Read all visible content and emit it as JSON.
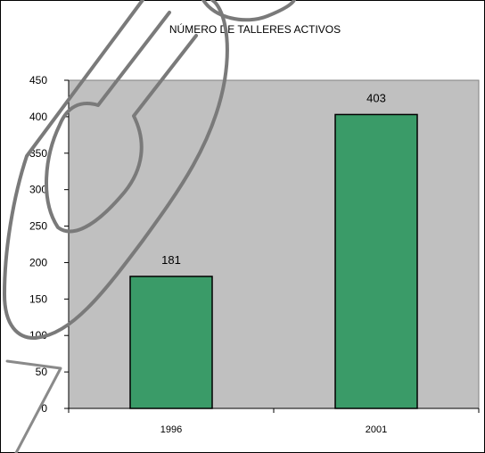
{
  "chart_data": {
    "type": "bar",
    "title": "NÚMERO DE TALLERES ACTIVOS",
    "categories": [
      "1996",
      "2001"
    ],
    "values": [
      181,
      403
    ],
    "data_labels": [
      "181",
      "403"
    ],
    "xlabel": "",
    "ylabel": "",
    "ylim": [
      0,
      450
    ],
    "yticks": [
      "0",
      "50",
      "100",
      "150",
      "200",
      "250",
      "300",
      "350",
      "400",
      "450"
    ],
    "grid": false,
    "legend": "none",
    "colors": {
      "bar": "#3a9b68",
      "plot_area": "#c0c0c0",
      "background": "#ffffff",
      "axis": "#000000",
      "overlay_stroke": "#777777"
    }
  }
}
